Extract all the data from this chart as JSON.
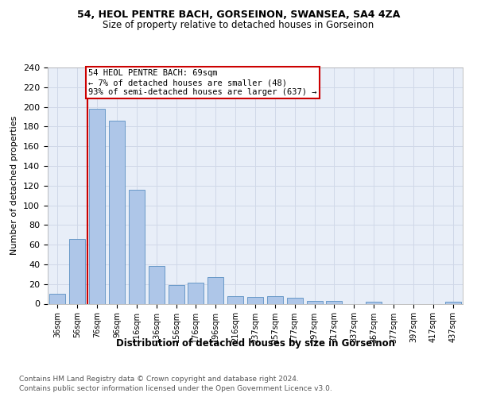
{
  "title1": "54, HEOL PENTRE BACH, GORSEINON, SWANSEA, SA4 4ZA",
  "title2": "Size of property relative to detached houses in Gorseinon",
  "xlabel": "Distribution of detached houses by size in Gorseinon",
  "ylabel": "Number of detached properties",
  "footnote1": "Contains HM Land Registry data © Crown copyright and database right 2024.",
  "footnote2": "Contains public sector information licensed under the Open Government Licence v3.0.",
  "categories": [
    "36sqm",
    "56sqm",
    "76sqm",
    "96sqm",
    "116sqm",
    "136sqm",
    "156sqm",
    "176sqm",
    "196sqm",
    "216sqm",
    "237sqm",
    "257sqm",
    "277sqm",
    "297sqm",
    "317sqm",
    "337sqm",
    "357sqm",
    "377sqm",
    "397sqm",
    "417sqm",
    "437sqm"
  ],
  "values": [
    10,
    66,
    198,
    186,
    116,
    38,
    19,
    21,
    27,
    8,
    7,
    8,
    6,
    3,
    3,
    0,
    2,
    0,
    0,
    0,
    2
  ],
  "bar_color": "#aec6e8",
  "bar_edge_color": "#5a8fc2",
  "marker_line_color": "#cc0000",
  "annotation_box_color": "#cc0000",
  "annotation_text": "54 HEOL PENTRE BACH: 69sqm\n← 7% of detached houses are smaller (48)\n93% of semi-detached houses are larger (637) →",
  "ylim": [
    0,
    240
  ],
  "yticks": [
    0,
    20,
    40,
    60,
    80,
    100,
    120,
    140,
    160,
    180,
    200,
    220,
    240
  ],
  "grid_color": "#d0d8e8",
  "bg_color": "#e8eef8"
}
